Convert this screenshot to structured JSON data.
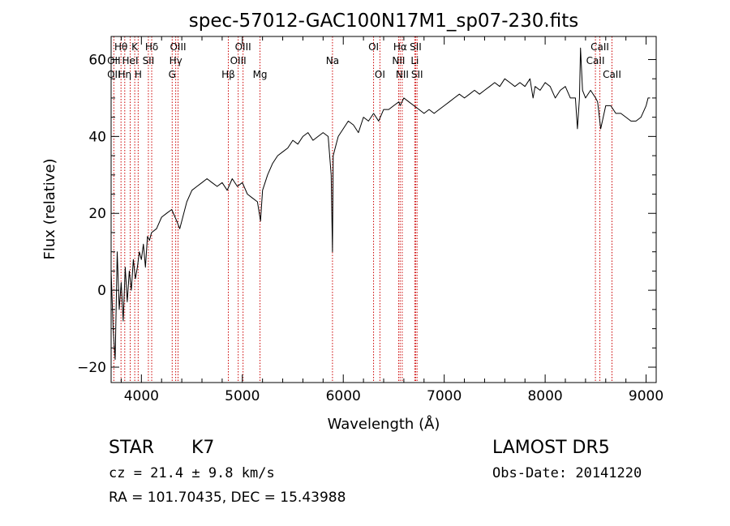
{
  "chart_data": {
    "type": "line",
    "title": "spec-57012-GAC100N17M1_sp07-230.fits",
    "xlabel": "Wavelength (Å)",
    "ylabel": "Flux (relative)",
    "xlim": [
      3700,
      9100
    ],
    "ylim": [
      -24,
      66
    ],
    "xticks": [
      4000,
      5000,
      6000,
      7000,
      8000,
      9000
    ],
    "yticks": [
      -20,
      0,
      20,
      40,
      60
    ],
    "grid": false,
    "series": [
      {
        "x": [
          3700,
          3720,
          3740,
          3760,
          3780,
          3800,
          3820,
          3840,
          3860,
          3880,
          3900,
          3920,
          3940,
          3960,
          3980,
          4000,
          4020,
          4040,
          4060,
          4080,
          4100,
          4150,
          4200,
          4250,
          4300,
          4350,
          4380,
          4400,
          4450,
          4500,
          4550,
          4600,
          4650,
          4700,
          4750,
          4800,
          4850,
          4900,
          4950,
          5000,
          5050,
          5100,
          5150,
          5180,
          5200,
          5250,
          5300,
          5350,
          5400,
          5450,
          5500,
          5550,
          5600,
          5650,
          5700,
          5750,
          5800,
          5850,
          5880,
          5893,
          5900,
          5930,
          5950,
          6000,
          6050,
          6100,
          6150,
          6200,
          6250,
          6300,
          6350,
          6400,
          6450,
          6500,
          6550,
          6563,
          6600,
          6650,
          6700,
          6750,
          6800,
          6850,
          6900,
          6950,
          7000,
          7050,
          7100,
          7150,
          7200,
          7250,
          7300,
          7350,
          7400,
          7450,
          7500,
          7550,
          7600,
          7650,
          7700,
          7750,
          7800,
          7850,
          7880,
          7900,
          7950,
          8000,
          8050,
          8100,
          8150,
          8200,
          8250,
          8300,
          8320,
          8340,
          8350,
          8370,
          8400,
          8450,
          8500,
          8520,
          8550,
          8600,
          8650,
          8700,
          8750,
          8800,
          8850,
          8900,
          8950,
          9000,
          9020,
          9040
        ],
        "y": [
          5,
          -10,
          -18,
          10,
          -5,
          2,
          -8,
          6,
          -3,
          5,
          0,
          8,
          3,
          6,
          10,
          8,
          12,
          6,
          14,
          13,
          15,
          16,
          19,
          20,
          21,
          18,
          16,
          18,
          23,
          26,
          27,
          28,
          29,
          28,
          27,
          28,
          26,
          29,
          27,
          28,
          25,
          24,
          23,
          18,
          26,
          30,
          33,
          35,
          36,
          37,
          39,
          38,
          40,
          41,
          39,
          40,
          41,
          40,
          30,
          10,
          35,
          38,
          40,
          42,
          44,
          43,
          41,
          45,
          44,
          46,
          44,
          47,
          47,
          48,
          49,
          48,
          50,
          49,
          48,
          47,
          46,
          47,
          46,
          47,
          48,
          49,
          50,
          51,
          50,
          51,
          52,
          51,
          52,
          53,
          54,
          53,
          55,
          54,
          53,
          54,
          53,
          55,
          50,
          53,
          52,
          54,
          53,
          50,
          52,
          53,
          50,
          50,
          42,
          50,
          63,
          52,
          50,
          52,
          50,
          49,
          42,
          48,
          48,
          46,
          46,
          45,
          44,
          44,
          45,
          48,
          50,
          50
        ]
      }
    ],
    "line_labels": [
      {
        "text": "Hθ",
        "row": 1,
        "x": 3798
      },
      {
        "text": "K",
        "row": 1,
        "x": 3934
      },
      {
        "text": "Hδ",
        "row": 1,
        "x": 4102
      },
      {
        "text": "OIII",
        "row": 1,
        "x": 4363
      },
      {
        "text": "OIII",
        "row": 1,
        "x": 5007
      },
      {
        "text": "OI",
        "row": 1,
        "x": 6300
      },
      {
        "text": "Hα",
        "row": 1,
        "x": 6563
      },
      {
        "text": "SII",
        "row": 1,
        "x": 6717
      },
      {
        "text": "CaII",
        "row": 1,
        "x": 8542
      },
      {
        "text": "OII",
        "row": 2,
        "x": 3727
      },
      {
        "text": "HeI",
        "row": 2,
        "x": 3889
      },
      {
        "text": "SII",
        "row": 2,
        "x": 4069
      },
      {
        "text": "Hγ",
        "row": 2,
        "x": 4340
      },
      {
        "text": "OIII",
        "row": 2,
        "x": 4959
      },
      {
        "text": "Na",
        "row": 2,
        "x": 5893
      },
      {
        "text": "NII",
        "row": 2,
        "x": 6548
      },
      {
        "text": "Li",
        "row": 2,
        "x": 6708
      },
      {
        "text": "CaII",
        "row": 2,
        "x": 8498
      },
      {
        "text": "OII",
        "row": 3,
        "x": 3727
      },
      {
        "text": "Hη",
        "row": 3,
        "x": 3835
      },
      {
        "text": "H",
        "row": 3,
        "x": 3968
      },
      {
        "text": "G",
        "row": 3,
        "x": 4305
      },
      {
        "text": "Hβ",
        "row": 3,
        "x": 4861
      },
      {
        "text": "Mg",
        "row": 3,
        "x": 5175
      },
      {
        "text": "OI",
        "row": 3,
        "x": 6363
      },
      {
        "text": "NII",
        "row": 3,
        "x": 6584
      },
      {
        "text": "SII",
        "row": 3,
        "x": 6731
      },
      {
        "text": "CaII",
        "row": 3,
        "x": 8662
      }
    ],
    "line_markers": [
      3727,
      3798,
      3835,
      3889,
      3934,
      3968,
      4069,
      4102,
      4305,
      4340,
      4363,
      4861,
      4959,
      5007,
      5175,
      5893,
      6300,
      6363,
      6548,
      6563,
      6584,
      6708,
      6717,
      6731,
      8498,
      8542,
      8662
    ],
    "line_color": "#000000",
    "marker_color": "#cc0000"
  },
  "info": {
    "class": "STAR",
    "subclass": "K7",
    "survey": "LAMOST DR5",
    "cz": "cz = 21.4 ± 9.8 km/s",
    "obs_date": "Obs-Date: 20141220",
    "radec": "RA = 101.70435, DEC =  15.43988"
  }
}
